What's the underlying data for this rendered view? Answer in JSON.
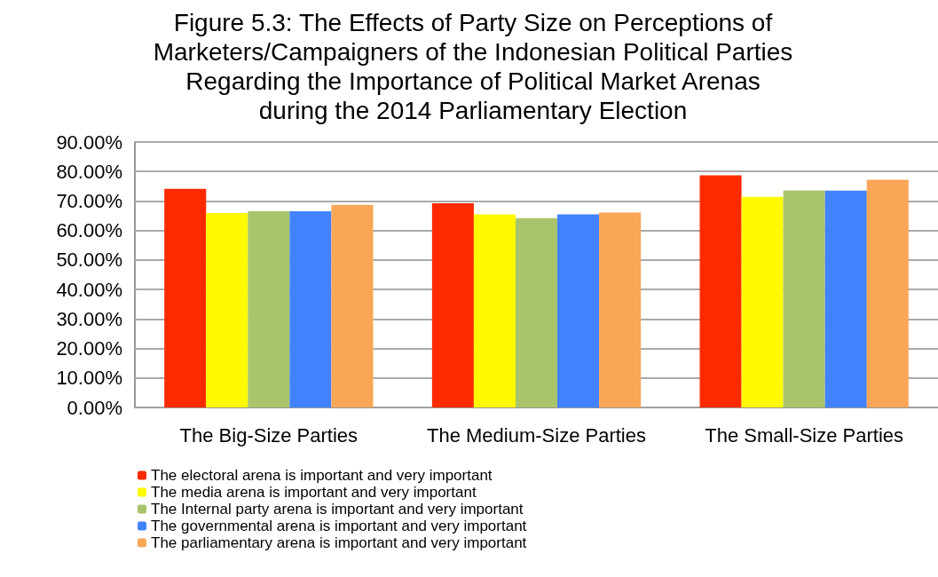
{
  "chart_data": {
    "type": "bar",
    "title": "Figure 5.3: The Effects of Party Size on Perceptions of\nMarketers/Campaigners of the Indonesian Political Parties\nRegarding the Importance of Political Market Arenas\nduring the 2014 Parliamentary Election",
    "categories": [
      "The Big-Size Parties",
      "The Medium-Size Parties",
      "The Small-Size Parties"
    ],
    "series": [
      {
        "name": "The electoral arena is important and very important",
        "color": "#ff2a00",
        "values": [
          74.1,
          69.2,
          78.7
        ]
      },
      {
        "name": "The media arena is important and very important",
        "color": "#fffa00",
        "values": [
          65.9,
          65.5,
          71.4
        ]
      },
      {
        "name": "The Internal party arena is important and very important",
        "color": "#aac46c",
        "values": [
          66.5,
          64.2,
          73.6
        ]
      },
      {
        "name": "The governmental arena is important and very important",
        "color": "#4282ff",
        "values": [
          66.5,
          65.5,
          73.5
        ]
      },
      {
        "name": "The parliamentary arena is important and very important",
        "color": "#f9a656",
        "values": [
          68.7,
          66.1,
          77.2
        ]
      }
    ],
    "ylim": [
      0,
      90
    ],
    "yticks": [
      {
        "value": 0,
        "label": "0.00%"
      },
      {
        "value": 10,
        "label": "10.00%"
      },
      {
        "value": 20,
        "label": "20.00%"
      },
      {
        "value": 30,
        "label": "30.00%"
      },
      {
        "value": 40,
        "label": "40.00%"
      },
      {
        "value": 50,
        "label": "50.00%"
      },
      {
        "value": 60,
        "label": "60.00%"
      },
      {
        "value": 70,
        "label": "70.00%"
      },
      {
        "value": 80,
        "label": "80.00%"
      },
      {
        "value": 90,
        "label": "90.00%"
      }
    ],
    "grid": "y",
    "legend": "bottom left"
  }
}
